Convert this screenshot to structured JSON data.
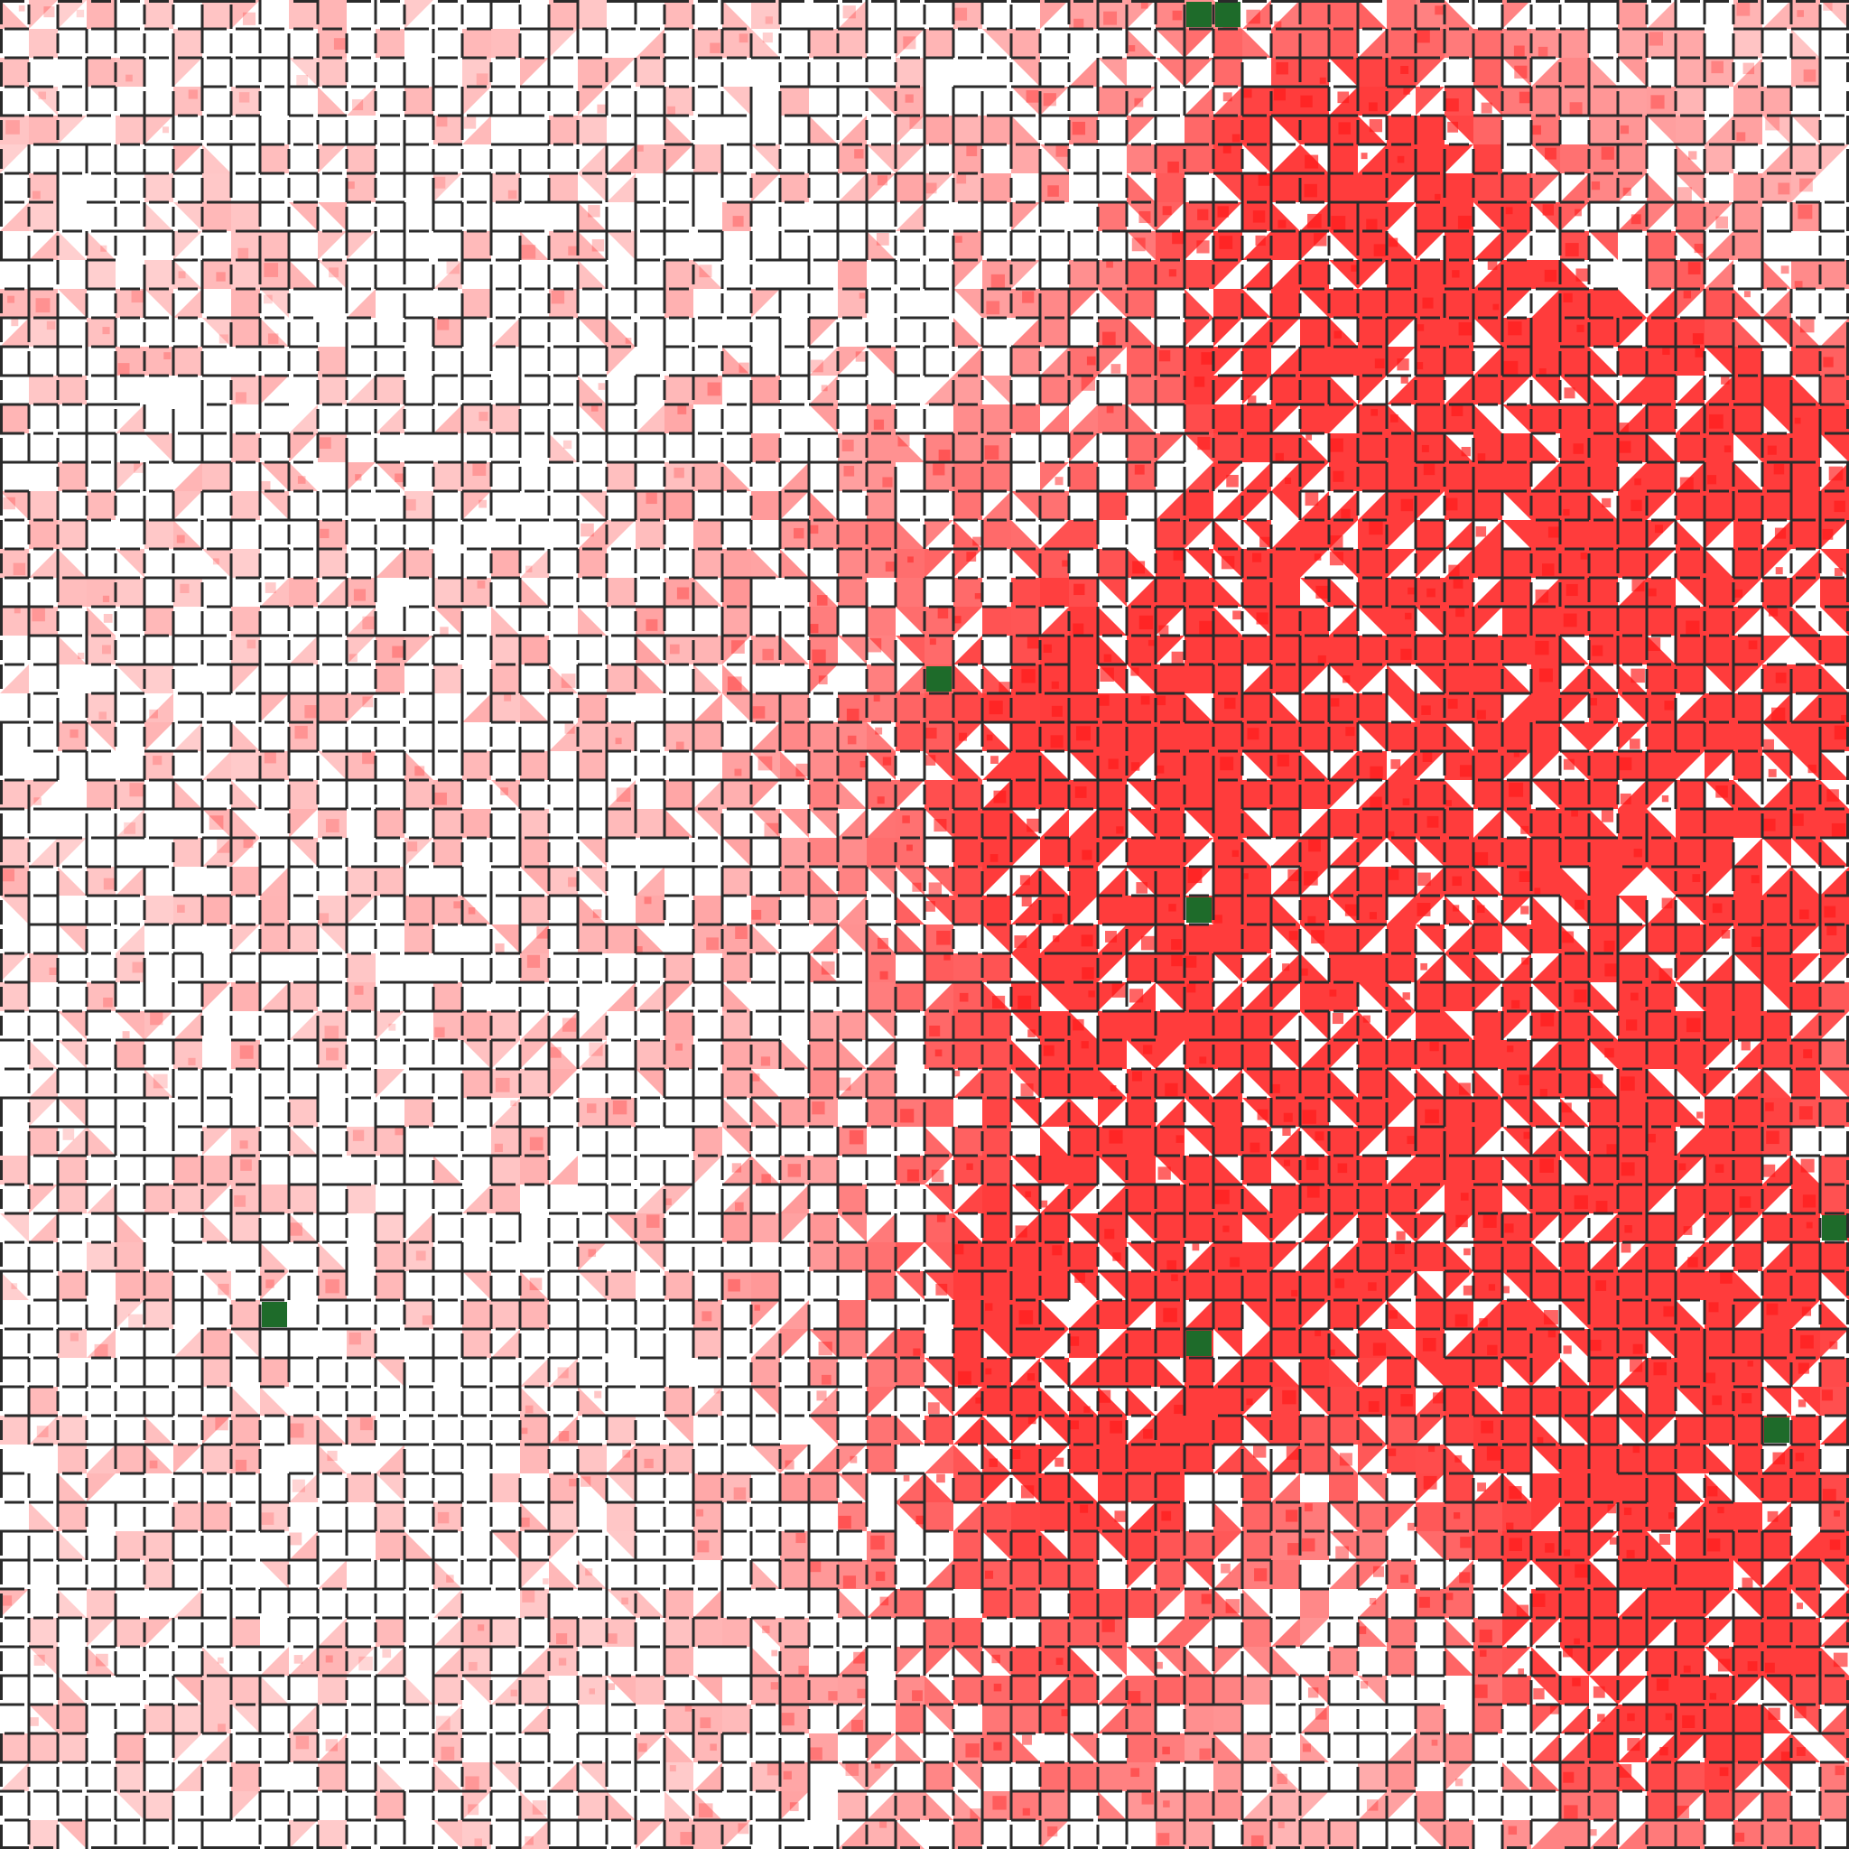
{
  "board": {
    "cols": 64,
    "rows": 64,
    "wall_color": "#2a2a2a",
    "floor_color": "#ffffff",
    "heat_color": "#ff1a1a",
    "target_color": "#1e6b2a"
  },
  "targets": [
    {
      "col": 41,
      "row": 0
    },
    {
      "col": 42,
      "row": 0
    },
    {
      "col": 32,
      "row": 23
    },
    {
      "col": 41,
      "row": 31
    },
    {
      "col": 63,
      "row": 42
    },
    {
      "col": 9,
      "row": 45
    },
    {
      "col": 41,
      "row": 46
    },
    {
      "col": 61,
      "row": 49
    }
  ],
  "hotspots": [
    {
      "col": 46,
      "row": 5,
      "strength": 0.9
    },
    {
      "col": 52,
      "row": 18,
      "strength": 1.0
    },
    {
      "col": 58,
      "row": 17,
      "strength": 0.85
    },
    {
      "col": 62,
      "row": 22,
      "strength": 0.9
    },
    {
      "col": 58,
      "row": 24,
      "strength": 0.85
    },
    {
      "col": 57,
      "row": 28,
      "strength": 0.8
    },
    {
      "col": 44,
      "row": 27,
      "strength": 0.75
    },
    {
      "col": 38,
      "row": 31,
      "strength": 0.8
    },
    {
      "col": 54,
      "row": 32,
      "strength": 0.7
    },
    {
      "col": 51,
      "row": 43,
      "strength": 0.9
    },
    {
      "col": 62,
      "row": 44,
      "strength": 0.8
    },
    {
      "col": 39,
      "row": 44,
      "strength": 0.7
    },
    {
      "col": 36,
      "row": 46,
      "strength": 0.6
    },
    {
      "col": 56,
      "row": 54,
      "strength": 0.7
    },
    {
      "col": 59,
      "row": 58,
      "strength": 0.75
    },
    {
      "col": 36,
      "row": 57,
      "strength": 0.65
    },
    {
      "col": 46,
      "row": 13,
      "strength": 0.6
    },
    {
      "col": 34,
      "row": 21,
      "strength": 0.5
    }
  ]
}
